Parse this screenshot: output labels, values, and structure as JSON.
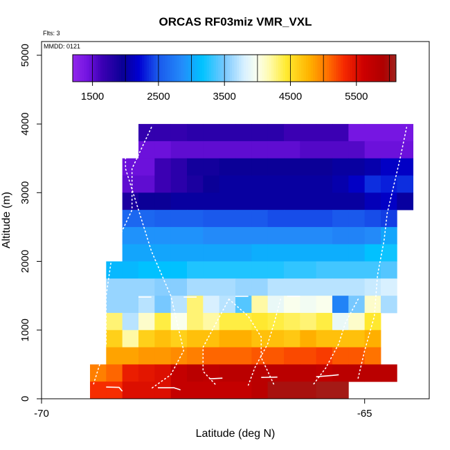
{
  "chart_data": {
    "type": "heatmap",
    "title": "ORCAS RF03miz VMR_VXL",
    "annotations": {
      "flights": "Flts: 3",
      "date": "MMDD: 0121"
    },
    "xlabel": "Latitude (deg N)",
    "ylabel": "Altitude (m)",
    "xlim": [
      -70,
      -64
    ],
    "ylim": [
      0,
      5200
    ],
    "x_ticks": [
      -70,
      -65
    ],
    "x_tick_labels": [
      "-70",
      "-65"
    ],
    "y_ticks": [
      0,
      1000,
      2000,
      3000,
      4000,
      5000
    ],
    "y_tick_labels": [
      "0",
      "1000",
      "2000",
      "3000",
      "4000",
      "5000"
    ],
    "colorbar": {
      "min": 1200,
      "max": 6100,
      "ticks": [
        1500,
        2500,
        3500,
        4500,
        5500
      ],
      "tick_labels": [
        "1500",
        "2500",
        "3500",
        "4500",
        "5500"
      ]
    },
    "rows": [
      {
        "y0": 4000,
        "y1": 3750,
        "x_start": -68.5,
        "values": [
          1700,
          1700,
          1700,
          1750,
          1750,
          1750,
          1750,
          1750,
          1750,
          1650,
          1650,
          1650,
          1650,
          1400,
          1400,
          1400,
          1400
        ]
      },
      {
        "y0": 3750,
        "y1": 3500,
        "x_start": -68.5,
        "values": [
          1450,
          1450,
          1500,
          1500,
          1500,
          1500,
          1500,
          1500,
          1500,
          1500,
          1550,
          1550,
          1550,
          1550,
          1450,
          1450,
          1450
        ]
      },
      {
        "y0": 3500,
        "y1": 3250,
        "x_start": -68.75,
        "values": [
          1450,
          1450,
          1650,
          1750,
          1900,
          1900,
          1950,
          1950,
          1950,
          1950,
          1950,
          1950,
          1950,
          2000,
          2000,
          2050,
          2150,
          2150
        ]
      },
      {
        "y0": 3250,
        "y1": 3000,
        "x_start": -68.75,
        "values": [
          1500,
          1500,
          1650,
          1750,
          1850,
          1950,
          2000,
          2000,
          2000,
          2000,
          2000,
          2000,
          2000,
          2050,
          2150,
          2350,
          2300,
          2350
        ]
      },
      {
        "y0": 3000,
        "y1": 2750,
        "x_start": -68.75,
        "values": [
          1850,
          1950,
          1950,
          2000,
          2000,
          2000,
          2000,
          2000,
          2000,
          2000,
          2000,
          2000,
          2000,
          2000,
          2000,
          2100,
          2150,
          2000
        ]
      },
      {
        "y0": 2750,
        "y1": 2500,
        "x_start": -68.75,
        "values": [
          2600,
          2600,
          2550,
          2550,
          2550,
          2500,
          2500,
          2500,
          2500,
          2450,
          2450,
          2450,
          2450,
          2500,
          2500,
          2450,
          2400
        ]
      },
      {
        "y0": 2500,
        "y1": 2250,
        "x_start": -68.75,
        "values": [
          2900,
          2900,
          2900,
          2900,
          2900,
          2850,
          2850,
          2850,
          2850,
          2850,
          2850,
          2850,
          2850,
          2800,
          2800,
          2850,
          3000
        ]
      },
      {
        "y0": 2250,
        "y1": 2000,
        "x_start": -68.75,
        "values": [
          3000,
          3000,
          3000,
          3000,
          3000,
          3000,
          3000,
          3000,
          3050,
          3050,
          3050,
          3050,
          3050,
          3050,
          3050,
          3150,
          3200
        ]
      },
      {
        "y0": 2000,
        "y1": 1750,
        "x_start": -69.0,
        "values": [
          3100,
          3100,
          3150,
          3150,
          3150,
          3250,
          3250,
          3250,
          3250,
          3250,
          3250,
          3300,
          3300,
          3350,
          3350,
          3350,
          3350,
          3400
        ]
      },
      {
        "y0": 1750,
        "y1": 1500,
        "x_start": -69.0,
        "values": [
          3600,
          3600,
          3600,
          3550,
          3550,
          3650,
          3650,
          3650,
          3600,
          3600,
          3700,
          3700,
          3700,
          3700,
          3700,
          3700,
          3750,
          3800
        ]
      },
      {
        "y0": 1500,
        "y1": 1250,
        "x_start": -69.0,
        "values": [
          3600,
          3600,
          3700,
          3500,
          3700,
          4300,
          3800,
          3700,
          3400,
          4200,
          3900,
          4000,
          3950,
          4000,
          2800,
          3500,
          4100,
          3650
        ]
      },
      {
        "y0": 1250,
        "y1": 1000,
        "x_start": -69.0,
        "values": [
          4300,
          3700,
          4100,
          4400,
          4000,
          4300,
          4200,
          4400,
          4400,
          4450,
          4400,
          4350,
          4300,
          4400,
          3900,
          4100,
          4450
        ]
      },
      {
        "y0": 1000,
        "y1": 750,
        "x_start": -69.0,
        "values": [
          4600,
          4200,
          4600,
          4700,
          4600,
          4700,
          4700,
          4800,
          4800,
          4700,
          4700,
          4650,
          4800,
          4700,
          4700,
          4700,
          4800
        ]
      },
      {
        "y0": 750,
        "y1": 500,
        "x_start": -69.0,
        "values": [
          4850,
          4850,
          4900,
          4900,
          4950,
          5000,
          5100,
          5100,
          5100,
          5150,
          5150,
          5200,
          5200,
          5250,
          5150,
          5150,
          5050
        ]
      },
      {
        "y0": 500,
        "y1": 250,
        "x_start": -69.25,
        "values": [
          5000,
          5100,
          5400,
          5450,
          5500,
          5700,
          5800,
          5750,
          5800,
          5800,
          5800,
          5800,
          5800,
          5800,
          5750,
          5800,
          5800,
          5800,
          5800
        ]
      },
      {
        "y0": 250,
        "y1": 0,
        "x_start": -69.25,
        "values": [
          5300,
          5300,
          5500,
          5500,
          5500,
          5700,
          5700,
          5700,
          5700,
          5700,
          5800,
          6000,
          6000,
          6000,
          6050,
          6050
        ]
      }
    ]
  }
}
